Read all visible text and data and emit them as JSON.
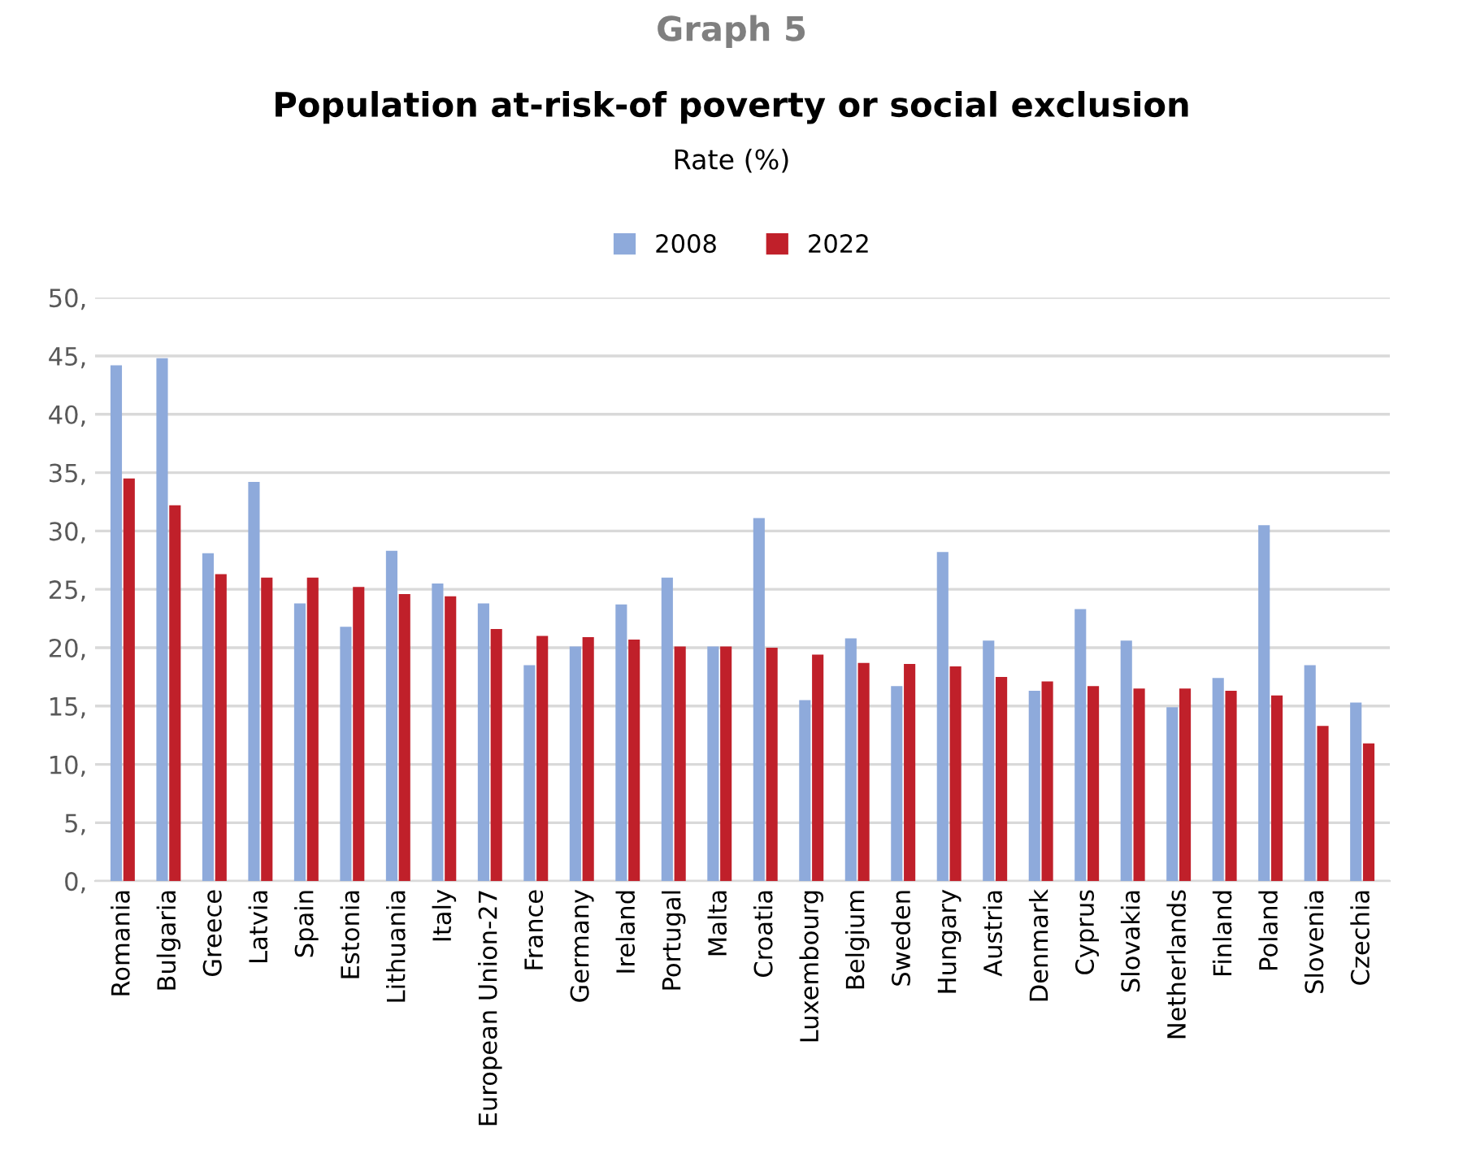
{
  "chart_data": {
    "type": "bar",
    "title": "Population at-risk-of poverty or social exclusion",
    "subtitle": "Rate (%)",
    "annotations": [
      "Graph 5"
    ],
    "categories": [
      "Romania",
      "Bulgaria",
      "Greece",
      "Latvia",
      "Spain",
      "Estonia",
      "Lithuania",
      "Italy",
      "European Union-27",
      "France",
      "Germany",
      "Ireland",
      "Portugal",
      "Malta",
      "Croatia",
      "Luxembourg",
      "Belgium",
      "Sweden",
      "Hungary",
      "Austria",
      "Denmark",
      "Cyprus",
      "Slovakia",
      "Netherlands",
      "Finland",
      "Poland",
      "Slovenia",
      "Czechia"
    ],
    "series": [
      {
        "name": "2008",
        "color": "#8eaadb",
        "values": [
          44.2,
          44.8,
          28.1,
          34.2,
          23.8,
          21.8,
          28.3,
          25.5,
          23.8,
          18.5,
          20.1,
          23.7,
          26.0,
          20.1,
          31.1,
          15.5,
          20.8,
          16.7,
          28.2,
          20.6,
          16.3,
          23.3,
          20.6,
          14.9,
          17.4,
          30.5,
          18.5,
          15.3
        ]
      },
      {
        "name": "2022",
        "color": "#c0202a",
        "values": [
          34.5,
          32.2,
          26.3,
          26.0,
          26.0,
          25.2,
          24.6,
          24.4,
          21.6,
          21.0,
          20.9,
          20.7,
          20.1,
          20.1,
          20.0,
          19.4,
          18.7,
          18.6,
          18.4,
          17.5,
          17.1,
          16.7,
          16.5,
          16.5,
          16.3,
          15.9,
          13.3,
          11.8
        ]
      }
    ],
    "ylim": [
      0,
      50
    ],
    "yticks": [
      {
        "value": 0,
        "label": "0,"
      },
      {
        "value": 5,
        "label": "5,"
      },
      {
        "value": 10,
        "label": "10,"
      },
      {
        "value": 15,
        "label": "15,"
      },
      {
        "value": 20,
        "label": "20,"
      },
      {
        "value": 25,
        "label": "25,"
      },
      {
        "value": 30,
        "label": "30,"
      },
      {
        "value": 35,
        "label": "35,"
      },
      {
        "value": 40,
        "label": "40,"
      },
      {
        "value": 45,
        "label": "45,"
      },
      {
        "value": 50,
        "label": "50,"
      }
    ],
    "grid": "y",
    "legend": "top"
  }
}
